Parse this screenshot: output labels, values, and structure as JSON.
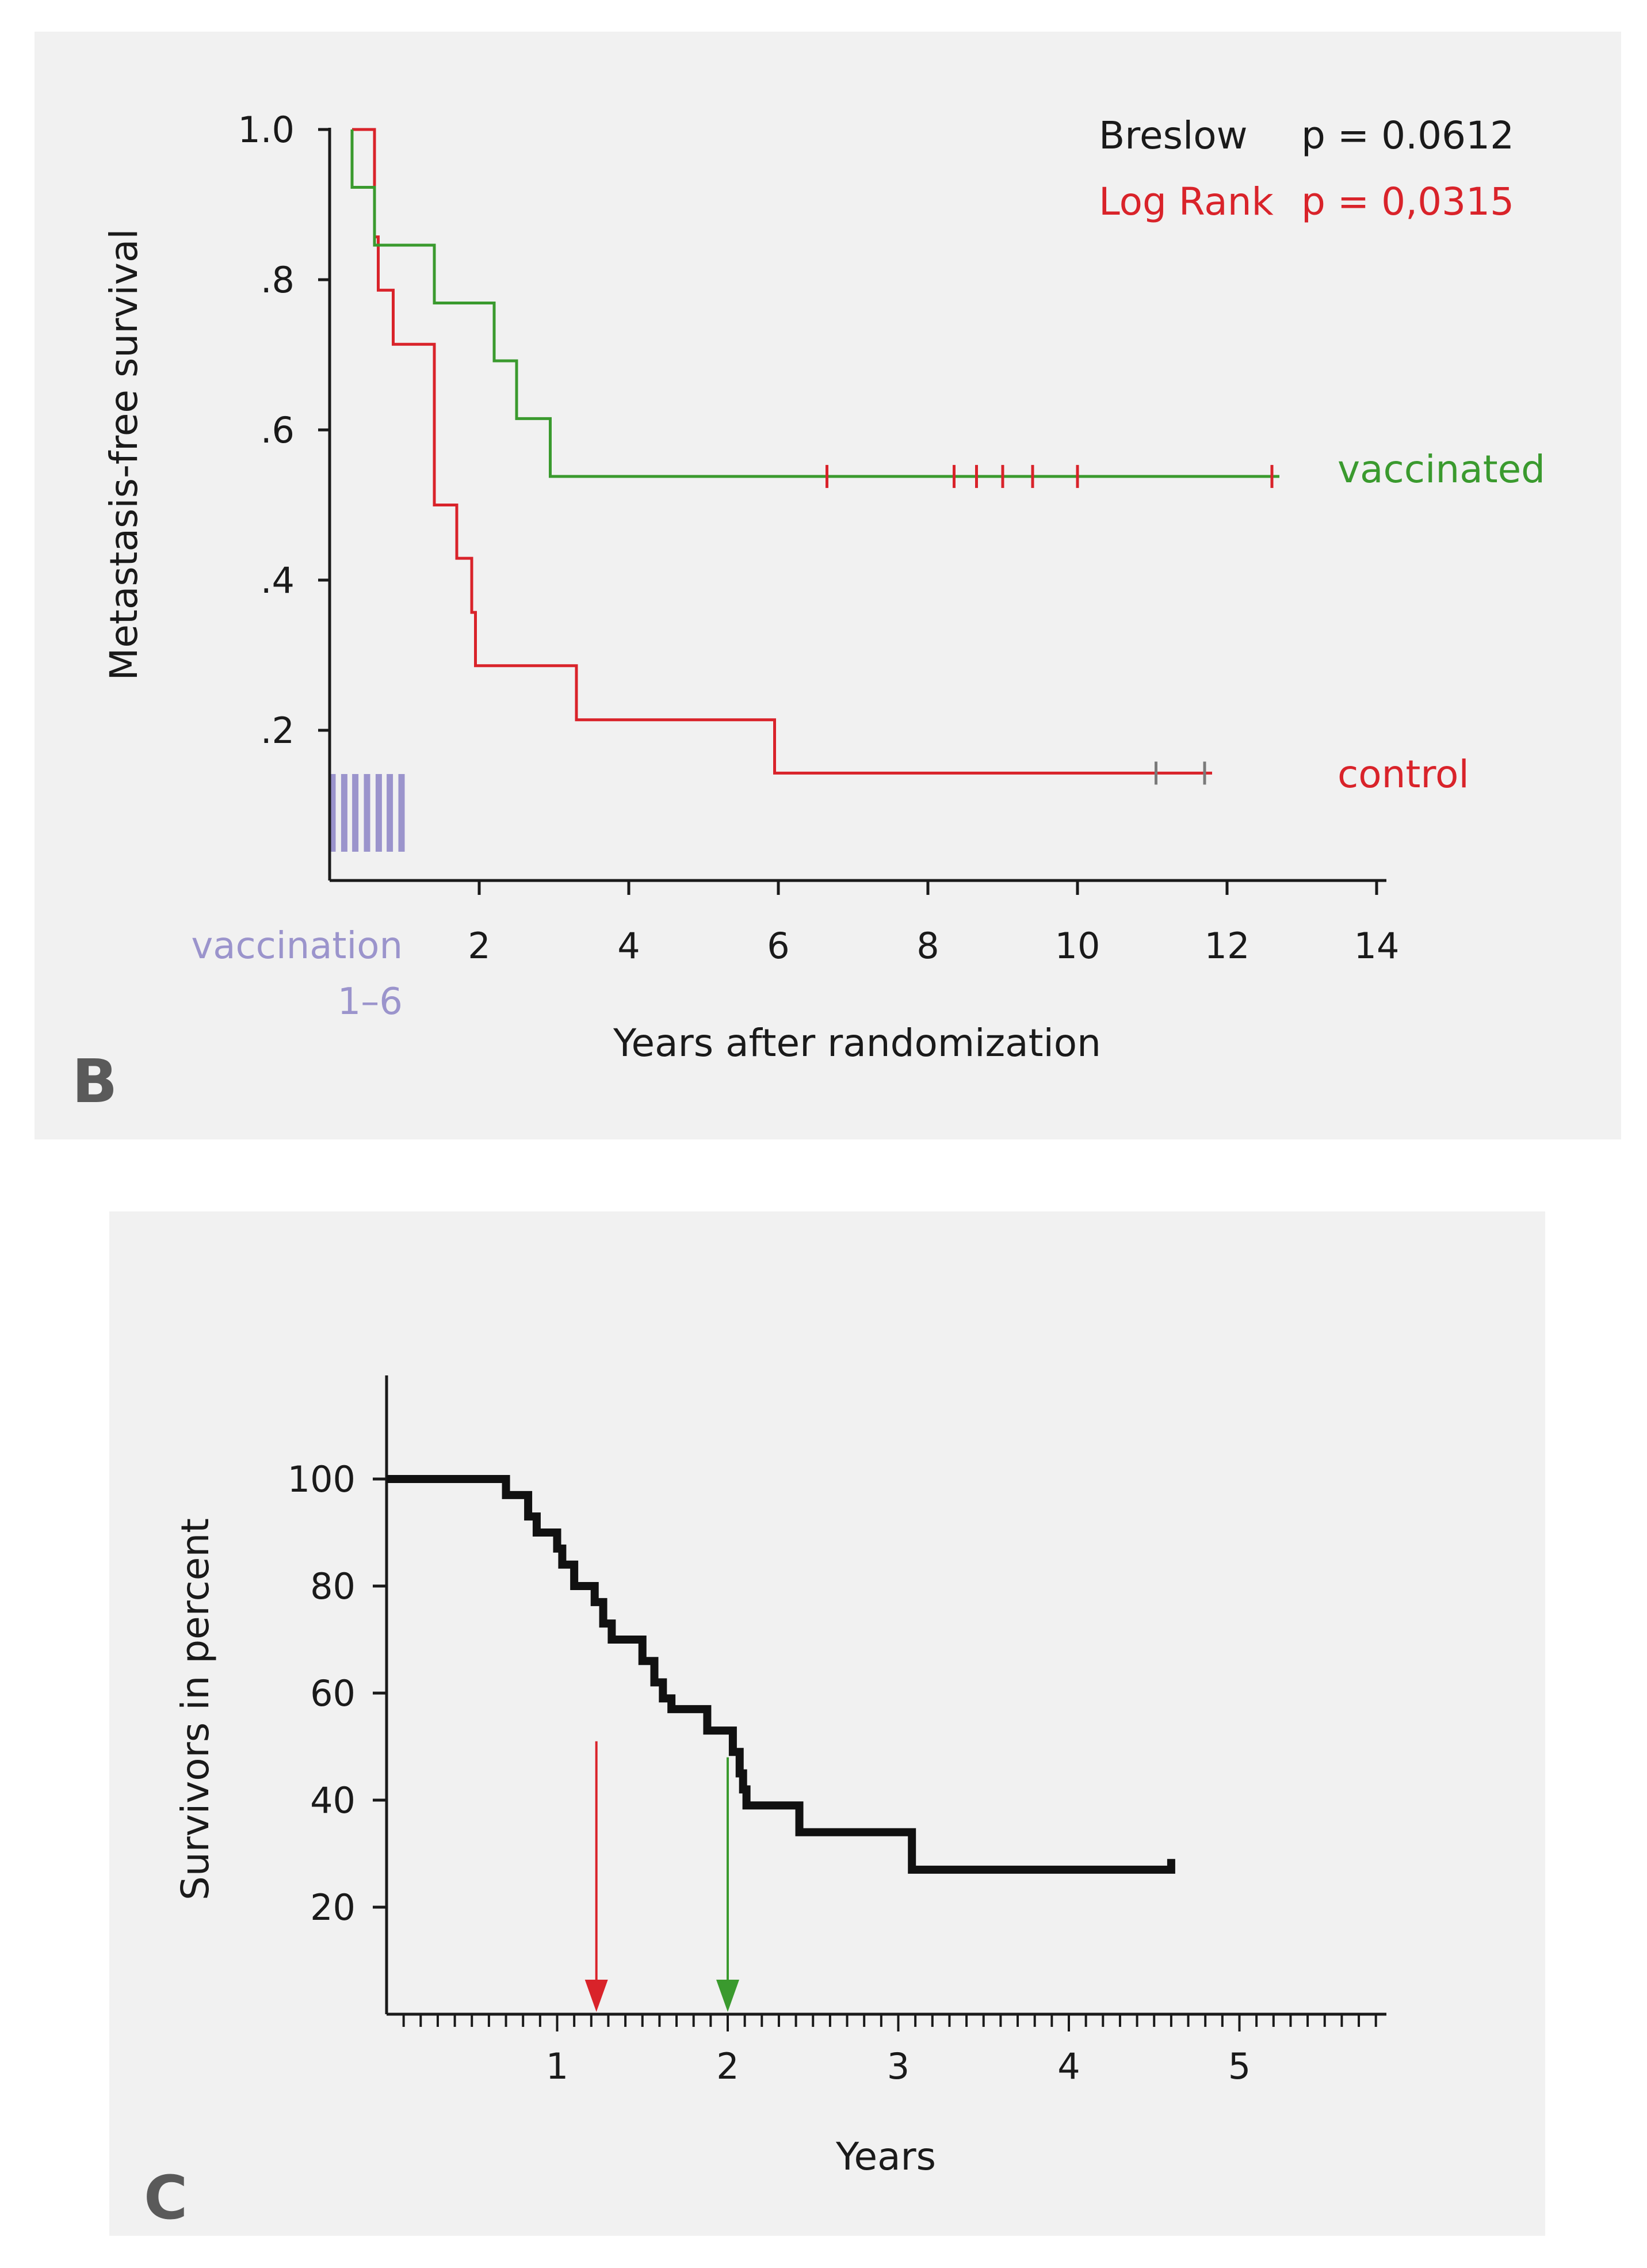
{
  "colors": {
    "panel_bg": "#f1f1f1",
    "axis": "#1a1a1a",
    "vaccinated": "#3a9a2e",
    "control": "#d9232a",
    "censor_vaccinated": "#d9232a",
    "censor_control": "#7a7a7a",
    "vaccination": "#9b94cc",
    "survival_line": "#111111",
    "panel_letter": "#5a5a5a",
    "arrow_red": "#d9232a",
    "arrow_green": "#3a9a2e"
  },
  "chart_data": [
    {
      "id": "B",
      "type": "line",
      "panel_label": "B",
      "xlabel": "Years after randomization",
      "ylabel": "Metastasis-free survival",
      "xlim": [
        0,
        14
      ],
      "ylim": [
        0,
        1.0
      ],
      "x_ticks": [
        {
          "value": 2,
          "label": "2"
        },
        {
          "value": 4,
          "label": "4"
        },
        {
          "value": 6,
          "label": "6"
        },
        {
          "value": 8,
          "label": "8"
        },
        {
          "value": 10,
          "label": "10"
        },
        {
          "value": 12,
          "label": "12"
        },
        {
          "value": 14,
          "label": "14"
        }
      ],
      "y_ticks": [
        {
          "value": 1.0,
          "label": "1.0"
        },
        {
          "value": 0.8,
          "label": ".8"
        },
        {
          "value": 0.6,
          "label": ".6"
        },
        {
          "value": 0.4,
          "label": ".4"
        },
        {
          "value": 0.2,
          "label": ".2"
        }
      ],
      "vaccination_label": "vaccination",
      "vaccination_range_label": "1–6",
      "vaccination_times": [
        0.0,
        0.17,
        0.33,
        0.5,
        0.67,
        0.83,
        1.0
      ],
      "annotations": {
        "breslow_label": "Breslow",
        "breslow_p": "p = 0.0612",
        "logrank_label": "Log Rank",
        "logrank_p": "p = 0,0315"
      },
      "series": [
        {
          "name": "vaccinated",
          "label": "vaccinated",
          "color_key": "vaccinated",
          "steps": [
            [
              0.3,
              1.0
            ],
            [
              0.3,
              0.923
            ],
            [
              0.6,
              0.923
            ],
            [
              0.6,
              0.846
            ],
            [
              1.4,
              0.846
            ],
            [
              1.4,
              0.769
            ],
            [
              2.2,
              0.769
            ],
            [
              2.2,
              0.692
            ],
            [
              2.5,
              0.692
            ],
            [
              2.5,
              0.615
            ],
            [
              2.95,
              0.615
            ],
            [
              2.95,
              0.538
            ],
            [
              12.7,
              0.538
            ]
          ],
          "censor_x": [
            6.65,
            8.35,
            8.65,
            9.0,
            9.4,
            10.0,
            12.6
          ],
          "censor_color_key": "censor_vaccinated"
        },
        {
          "name": "control",
          "label": "control",
          "color_key": "control",
          "steps": [
            [
              0.3,
              1.0
            ],
            [
              0.6,
              1.0
            ],
            [
              0.6,
              0.857
            ],
            [
              0.65,
              0.857
            ],
            [
              0.65,
              0.786
            ],
            [
              0.85,
              0.786
            ],
            [
              0.85,
              0.714
            ],
            [
              1.4,
              0.714
            ],
            [
              1.4,
              0.5
            ],
            [
              1.7,
              0.5
            ],
            [
              1.7,
              0.429
            ],
            [
              1.9,
              0.429
            ],
            [
              1.9,
              0.357
            ],
            [
              1.95,
              0.357
            ],
            [
              1.95,
              0.286
            ],
            [
              3.3,
              0.286
            ],
            [
              3.3,
              0.214
            ],
            [
              5.95,
              0.214
            ],
            [
              5.95,
              0.143
            ],
            [
              11.8,
              0.143
            ]
          ],
          "censor_x": [
            11.05,
            11.7
          ],
          "censor_color_key": "censor_control"
        }
      ]
    },
    {
      "id": "C",
      "type": "line",
      "panel_label": "C",
      "xlabel": "Years",
      "ylabel": "Survivors in percent",
      "xlim": [
        0,
        5.85
      ],
      "ylim": [
        0,
        120
      ],
      "x_ticks": [
        {
          "value": 1,
          "label": "1"
        },
        {
          "value": 2,
          "label": "2"
        },
        {
          "value": 3,
          "label": "3"
        },
        {
          "value": 4,
          "label": "4"
        },
        {
          "value": 5,
          "label": "5"
        }
      ],
      "x_minor_step": 0.1,
      "y_ticks": [
        {
          "value": 100,
          "label": "100"
        },
        {
          "value": 80,
          "label": "80"
        },
        {
          "value": 60,
          "label": "60"
        },
        {
          "value": 40,
          "label": "40"
        },
        {
          "value": 20,
          "label": "20"
        }
      ],
      "arrows": [
        {
          "x": 1.23,
          "from_y": 51,
          "color_key": "arrow_red"
        },
        {
          "x": 2.0,
          "from_y": 48,
          "color_key": "arrow_green"
        }
      ],
      "series": [
        {
          "name": "survival",
          "color_key": "survival_line",
          "steps": [
            [
              0,
              100
            ],
            [
              0.7,
              100
            ],
            [
              0.7,
              97
            ],
            [
              0.83,
              97
            ],
            [
              0.83,
              93
            ],
            [
              0.88,
              93
            ],
            [
              0.88,
              90
            ],
            [
              1.0,
              90
            ],
            [
              1.0,
              87
            ],
            [
              1.03,
              87
            ],
            [
              1.03,
              84
            ],
            [
              1.1,
              84
            ],
            [
              1.1,
              80
            ],
            [
              1.22,
              80
            ],
            [
              1.22,
              77
            ],
            [
              1.27,
              77
            ],
            [
              1.27,
              73
            ],
            [
              1.32,
              73
            ],
            [
              1.32,
              70
            ],
            [
              1.5,
              70
            ],
            [
              1.5,
              66
            ],
            [
              1.57,
              66
            ],
            [
              1.57,
              62
            ],
            [
              1.62,
              62
            ],
            [
              1.62,
              59
            ],
            [
              1.67,
              59
            ],
            [
              1.67,
              57
            ],
            [
              1.88,
              57
            ],
            [
              1.88,
              53
            ],
            [
              2.03,
              53
            ],
            [
              2.03,
              49
            ],
            [
              2.07,
              49
            ],
            [
              2.07,
              45
            ],
            [
              2.09,
              45
            ],
            [
              2.09,
              42
            ],
            [
              2.11,
              42
            ],
            [
              2.11,
              39
            ],
            [
              2.42,
              39
            ],
            [
              2.42,
              34
            ],
            [
              3.08,
              34
            ],
            [
              3.08,
              27
            ],
            [
              4.6,
              27
            ],
            [
              4.6,
              29
            ]
          ]
        }
      ]
    }
  ]
}
